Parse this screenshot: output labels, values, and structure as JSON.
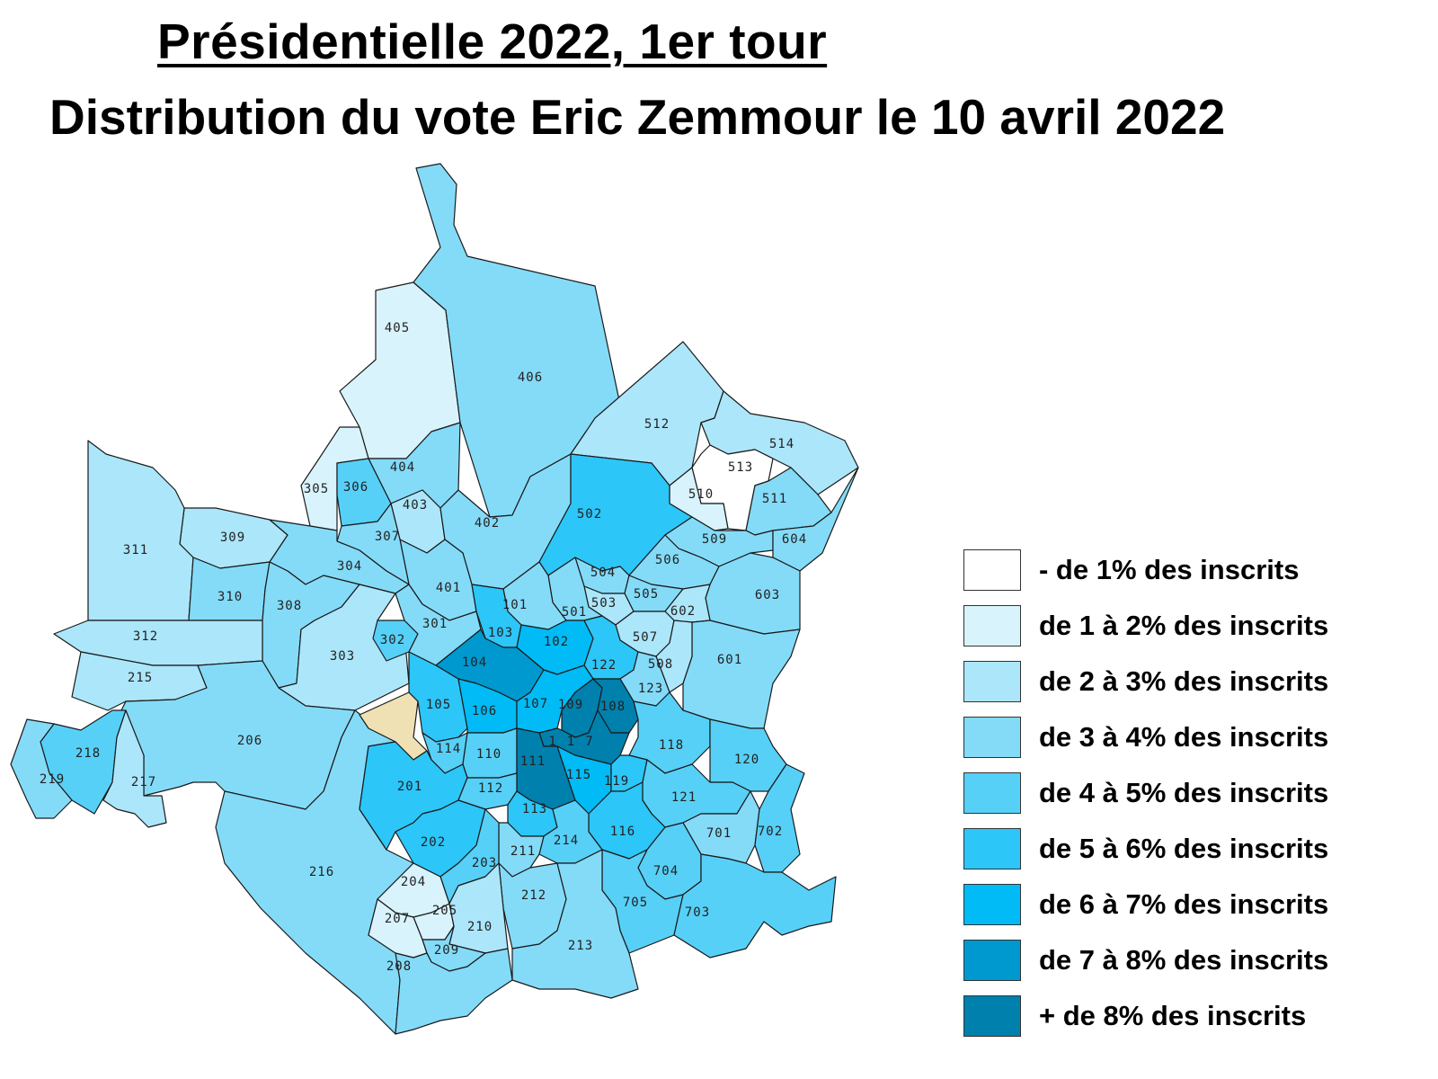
{
  "title": {
    "line1": "Présidentielle 2022, 1er tour",
    "line2": "Distribution du vote Eric Zemmour le 10 avril 2022"
  },
  "colors": {
    "c0": "#ffffff",
    "c1": "#d8f3fc",
    "c2": "#ace6fa",
    "c3": "#84dbf8",
    "c4": "#57d0f7",
    "c5": "#2cc6f8",
    "c6": "#00bbf5",
    "c7": "#0099cf",
    "c8": "#0080ad",
    "other": "#efe1b4"
  },
  "legend": [
    {
      "label": "- de 1% des inscrits",
      "color": "#ffffff"
    },
    {
      "label": "de 1 à 2% des inscrits",
      "color": "#d8f3fc"
    },
    {
      "label": "de 2 à 3% des inscrits",
      "color": "#ace6fa"
    },
    {
      "label": "de 3 à 4% des inscrits",
      "color": "#84dbf8"
    },
    {
      "label": "de 4 à 5% des inscrits",
      "color": "#57d0f7"
    },
    {
      "label": "de 5 à 6% des inscrits",
      "color": "#2cc6f8"
    },
    {
      "label": "de 6 à 7% des inscrits",
      "color": "#00bbf5"
    },
    {
      "label": "de 7 à 8% des inscrits",
      "color": "#0099cf"
    },
    {
      "label": "+ de 8% des inscrits",
      "color": "#0080ad"
    }
  ],
  "zones": [
    {
      "id": "405",
      "cls": 1
    },
    {
      "id": "406",
      "cls": 3
    },
    {
      "id": "404",
      "cls": 3
    },
    {
      "id": "403",
      "cls": 2
    },
    {
      "id": "402",
      "cls": 3
    },
    {
      "id": "401",
      "cls": 3
    },
    {
      "id": "305",
      "cls": 1
    },
    {
      "id": "306",
      "cls": 4
    },
    {
      "id": "307",
      "cls": 3
    },
    {
      "id": "309",
      "cls": 2
    },
    {
      "id": "304",
      "cls": 3
    },
    {
      "id": "311",
      "cls": 2
    },
    {
      "id": "310",
      "cls": 3
    },
    {
      "id": "308",
      "cls": 3
    },
    {
      "id": "312",
      "cls": 2
    },
    {
      "id": "303",
      "cls": 2
    },
    {
      "id": "302",
      "cls": 4
    },
    {
      "id": "301",
      "cls": 3
    },
    {
      "id": "215",
      "cls": 2
    },
    {
      "id": "206",
      "cls": 3
    },
    {
      "id": "218",
      "cls": 4
    },
    {
      "id": "219",
      "cls": 3
    },
    {
      "id": "217",
      "cls": 2
    },
    {
      "id": "216",
      "cls": 3
    },
    {
      "id": "512",
      "cls": 2
    },
    {
      "id": "514",
      "cls": 2
    },
    {
      "id": "513",
      "cls": 0
    },
    {
      "id": "510",
      "cls": 1
    },
    {
      "id": "511",
      "cls": 3
    },
    {
      "id": "502",
      "cls": 5
    },
    {
      "id": "509",
      "cls": 3
    },
    {
      "id": "604",
      "cls": 3
    },
    {
      "id": "506",
      "cls": 3
    },
    {
      "id": "504",
      "cls": 3
    },
    {
      "id": "505",
      "cls": 3
    },
    {
      "id": "503",
      "cls": 2
    },
    {
      "id": "501",
      "cls": 3
    },
    {
      "id": "603",
      "cls": 3
    },
    {
      "id": "602",
      "cls": 2
    },
    {
      "id": "507",
      "cls": 2
    },
    {
      "id": "601",
      "cls": 3
    },
    {
      "id": "508",
      "cls": 2
    },
    {
      "id": "101",
      "cls": 3
    },
    {
      "id": "103",
      "cls": 5
    },
    {
      "id": "102",
      "cls": 6
    },
    {
      "id": "104",
      "cls": 7
    },
    {
      "id": "122",
      "cls": 5
    },
    {
      "id": "123",
      "cls": 3
    },
    {
      "id": "105",
      "cls": 5
    },
    {
      "id": "106",
      "cls": 6
    },
    {
      "id": "107",
      "cls": 6
    },
    {
      "id": "109",
      "cls": 8
    },
    {
      "id": "108",
      "cls": 8
    },
    {
      "id": "114",
      "cls": 4
    },
    {
      "id": "110",
      "cls": 4
    },
    {
      "id": "117",
      "cls": 8
    },
    {
      "id": "111",
      "cls": 8
    },
    {
      "id": "118",
      "cls": 4
    },
    {
      "id": "120",
      "cls": 4
    },
    {
      "id": "115",
      "cls": 6
    },
    {
      "id": "119",
      "cls": 5
    },
    {
      "id": "201",
      "cls": 5
    },
    {
      "id": "112",
      "cls": 4
    },
    {
      "id": "121",
      "cls": 4
    },
    {
      "id": "113",
      "cls": 5
    },
    {
      "id": "116",
      "cls": 5
    },
    {
      "id": "701",
      "cls": 3
    },
    {
      "id": "702",
      "cls": 4
    },
    {
      "id": "202",
      "cls": 5
    },
    {
      "id": "214",
      "cls": 4
    },
    {
      "id": "211",
      "cls": 3
    },
    {
      "id": "203",
      "cls": 4
    },
    {
      "id": "704",
      "cls": 4
    },
    {
      "id": "204",
      "cls": 1
    },
    {
      "id": "212",
      "cls": 3
    },
    {
      "id": "705",
      "cls": 4
    },
    {
      "id": "703",
      "cls": 4
    },
    {
      "id": "205",
      "cls": 1
    },
    {
      "id": "210",
      "cls": 2
    },
    {
      "id": "207",
      "cls": 1
    },
    {
      "id": "213",
      "cls": 3
    },
    {
      "id": "209",
      "cls": 3
    },
    {
      "id": "208",
      "cls": 3
    }
  ]
}
